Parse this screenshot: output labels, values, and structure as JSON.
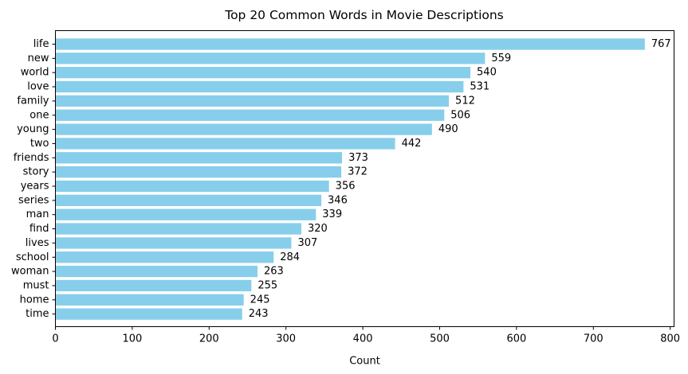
{
  "chart_data": {
    "type": "bar",
    "orientation": "horizontal",
    "title": "Top 20 Common Words in Movie Descriptions",
    "xlabel": "Count",
    "ylabel": "",
    "categories": [
      "life",
      "new",
      "world",
      "love",
      "family",
      "one",
      "young",
      "two",
      "friends",
      "story",
      "years",
      "series",
      "man",
      "find",
      "lives",
      "school",
      "woman",
      "must",
      "home",
      "time"
    ],
    "values": [
      767,
      559,
      540,
      531,
      512,
      506,
      490,
      442,
      373,
      372,
      356,
      346,
      339,
      320,
      307,
      284,
      263,
      255,
      245,
      243
    ],
    "xlim": [
      0,
      805
    ],
    "xticks": [
      0,
      100,
      200,
      300,
      400,
      500,
      600,
      700,
      800
    ],
    "bar_color": "#87CEEB",
    "grid": false,
    "legend": false
  }
}
